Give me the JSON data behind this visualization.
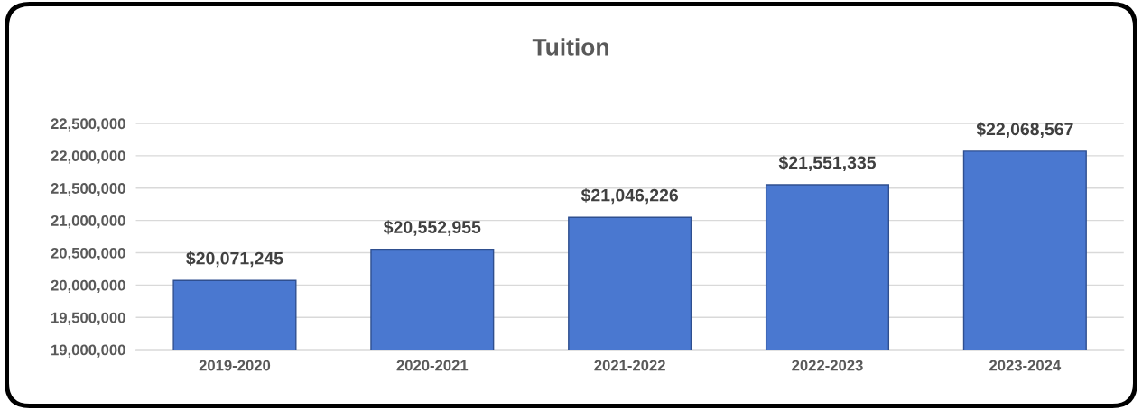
{
  "chart_data": {
    "type": "bar",
    "title": "Tuition",
    "categories": [
      "2019-2020",
      "2020-2021",
      "2021-2022",
      "2022-2023",
      "2023-2024"
    ],
    "values": [
      20071245,
      20552955,
      21046226,
      21551335,
      22068567
    ],
    "color": "#4a78d0",
    "value_labels": [
      "$20,071,245",
      "$20,552,955",
      "$21,046,226",
      "$21,551,335",
      "$22,068,567"
    ],
    "ylim": [
      19000000,
      22500000
    ],
    "yticks": [
      {
        "value": 19000000,
        "label": "19,000,000"
      },
      {
        "value": 19500000,
        "label": "19,500,000"
      },
      {
        "value": 20000000,
        "label": "20,000,000"
      },
      {
        "value": 20500000,
        "label": "20,500,000"
      },
      {
        "value": 21000000,
        "label": "21,000,000"
      },
      {
        "value": 21500000,
        "label": "21,500,000"
      },
      {
        "value": 22000000,
        "label": "22,000,000"
      },
      {
        "value": 22500000,
        "label": "22,500,000"
      }
    ],
    "grid": "y",
    "legend": false
  }
}
